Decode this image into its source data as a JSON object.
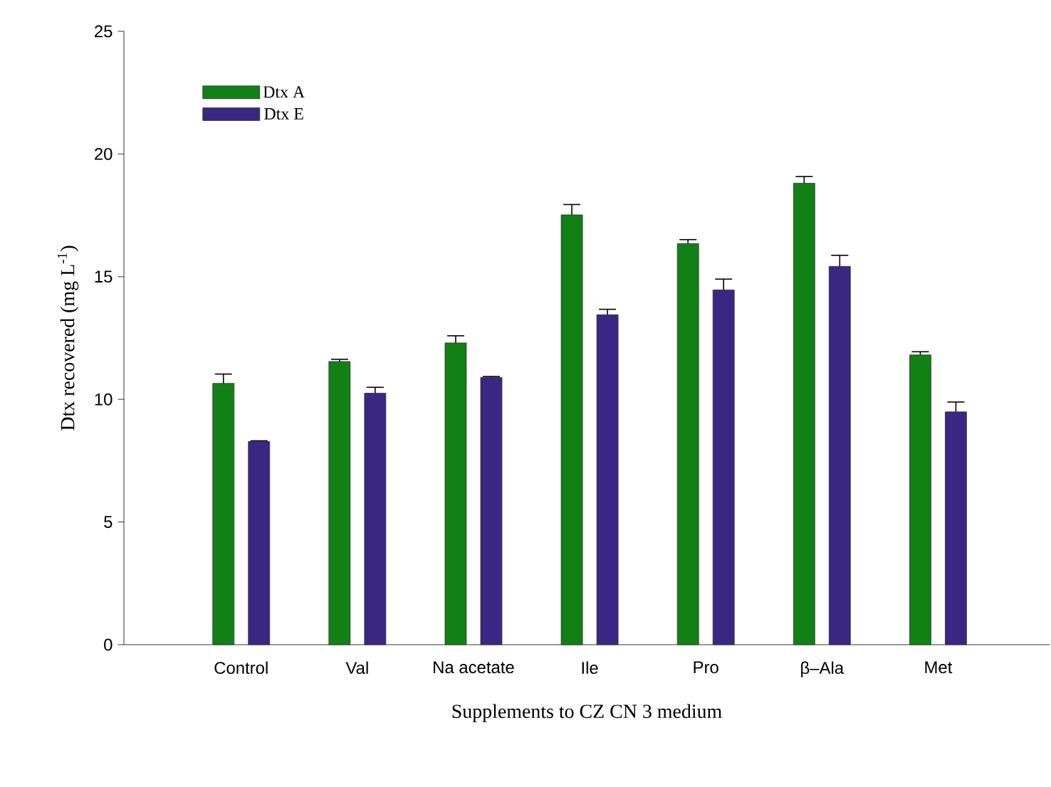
{
  "chart_data": {
    "type": "bar",
    "xlabel": "Supplements to CZ CN 3 medium",
    "ylabel": "Dtx recovered (mg L$^{-1}$)",
    "categories": [
      "Control",
      "Val",
      "Na acetate",
      "Ile",
      "Pro",
      "β–Ala",
      "Met"
    ],
    "series": [
      {
        "name": "Dtx A",
        "color": "#118015",
        "values": [
          10.65,
          11.54,
          12.3,
          17.52,
          16.35,
          18.81,
          11.81
        ],
        "errors": [
          0.38,
          0.09,
          0.29,
          0.42,
          0.16,
          0.27,
          0.13
        ]
      },
      {
        "name": "Dtx E",
        "color": "#3a2683",
        "values": [
          8.28,
          10.25,
          10.89,
          13.45,
          14.46,
          15.42,
          9.49
        ],
        "errors": [
          0.03,
          0.24,
          0.04,
          0.22,
          0.44,
          0.45,
          0.4
        ]
      }
    ],
    "ylim": [
      0,
      25
    ],
    "yticks": [
      0,
      5,
      10,
      15,
      20,
      25
    ],
    "legend": "top left"
  }
}
